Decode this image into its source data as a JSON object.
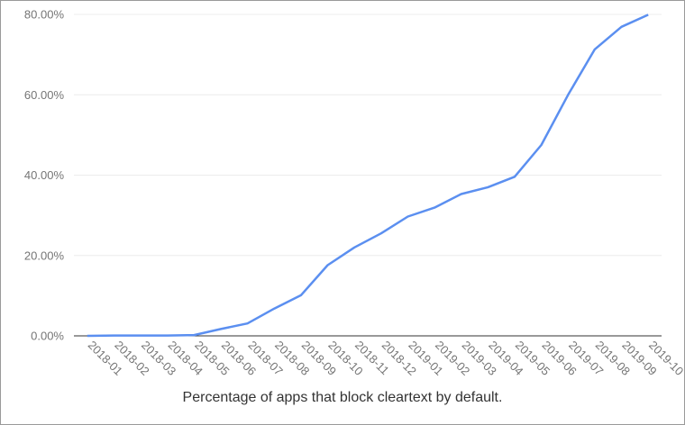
{
  "chart_data": {
    "type": "line",
    "title": "",
    "xlabel": "",
    "ylabel": "",
    "caption": "Percentage of apps that block cleartext by default.",
    "categories": [
      "2018-01",
      "2018-02",
      "2018-03",
      "2018-04",
      "2018-05",
      "2018-06",
      "2018-07",
      "2018-08",
      "2018-09",
      "2018-10",
      "2018-11",
      "2018-12",
      "2019-01",
      "2019-02",
      "2019-03",
      "2019-04",
      "2019-05",
      "2019-06",
      "2019-07",
      "2019-08",
      "2019-09",
      "2019-10"
    ],
    "series": [
      {
        "values": [
          0.0,
          0.1,
          0.1,
          0.1,
          0.2,
          1.7,
          3.1,
          6.8,
          10.1,
          17.6,
          22.0,
          25.5,
          29.7,
          31.9,
          35.3,
          37.0,
          39.6,
          47.5,
          60.0,
          71.3,
          76.9,
          79.9
        ],
        "color": "#5b8ff0"
      }
    ],
    "yticks": [
      "0.00%",
      "20.00%",
      "40.00%",
      "60.00%",
      "80.00%"
    ],
    "ylim": [
      0,
      80
    ],
    "grid": true,
    "legend": "none"
  }
}
